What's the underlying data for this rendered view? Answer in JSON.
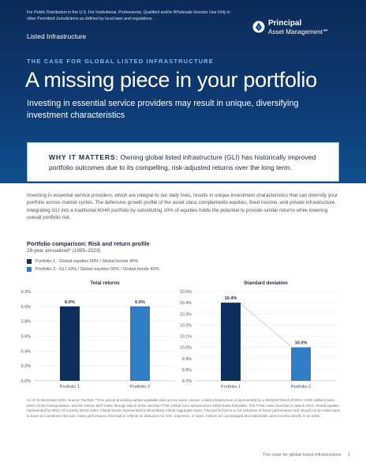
{
  "header": {
    "disclaimer": "For Public Distribution in the U.S. For Institutional, Professional, Qualified and/or Wholesale Investor Use Only in other Permitted Jurisdictions as defined by local laws and regulations.",
    "section_label": "Listed Infrastructure",
    "logo": {
      "name_line1": "Principal",
      "name_line2": "Asset Management℠"
    },
    "kicker": "THE CASE FOR GLOBAL LISTED INFRASTRUCTURE",
    "title": "A missing piece in your portfolio",
    "subtitle": "Investing in essential service providers may result in unique, diversifying investment characteristics"
  },
  "callout": {
    "lead": "WHY IT MATTERS:",
    "text": " Owning global listed infrastructure (GLI) has historically improved portfolio outcomes due to its compelling, risk-adjusted returns over the long term."
  },
  "body": "Investing in essential service providers, which are integral to our daily lives, results in unique investment characteristics that can diversify your portfolio across market cycles. The defensive growth profile of the asset class complements equities, fixed income, and private infrastructure. Integrating GLI into a traditional 60/40 portfolio by substituting 10% of equities holds the potential to provide similar returns while lowering overall portfolio risk.",
  "comparison": {
    "title": "Portfolio comparison: Risk and return profile",
    "subtitle": "28-year annualized* (1995–2023)",
    "legend": [
      {
        "label": "Portfolio 1 - Global equities 60% / Global bonds 40%",
        "color": "#0d2f5e"
      },
      {
        "label": "Portfolio 2 - GLI 10% / Global equities 50% / Global bonds 40%",
        "color": "#2f7dc4"
      }
    ]
  },
  "chart_data": [
    {
      "type": "bar",
      "title": "Total returns",
      "categories": [
        "Portfolio 1",
        "Portfolio 2"
      ],
      "values": [
        6.0,
        6.0
      ],
      "labels": [
        "6.0%",
        "6.0%"
      ],
      "ylim": [
        5.0,
        6.2
      ],
      "ticks": [
        5.0,
        5.2,
        5.4,
        5.6,
        5.8,
        6.0,
        6.2
      ],
      "tick_labels": [
        "5.0%",
        "5.2%",
        "5.4%",
        "5.6%",
        "5.8%",
        "6.0%",
        "6.2%"
      ],
      "colors": [
        "#0d2f5e",
        "#2f7dc4"
      ]
    },
    {
      "type": "bar",
      "title": "Standard deviation",
      "categories": [
        "Portfolio 1",
        "Portfolio 2"
      ],
      "values": [
        10.4,
        10.0
      ],
      "labels": [
        "10.4%",
        "10.0%"
      ],
      "ylim": [
        9.7,
        10.5
      ],
      "ticks": [
        9.7,
        9.8,
        9.9,
        10.0,
        10.1,
        10.2,
        10.3,
        10.4,
        10.5
      ],
      "tick_labels": [
        "9.7%",
        "9.8%",
        "9.9%",
        "10.0%",
        "10.1%",
        "10.2%",
        "10.3%",
        "10.4%",
        "10.5%"
      ],
      "colors": [
        "#0d2f5e",
        "#2f7dc4"
      ],
      "connector": true
    }
  ],
  "footnote": "As of 31 December 2023. Source: FactSet. *Time period providing earliest available data across asset classes. Listed infrastructure is represented by a 50/30/20 blend of MSCI ACWI Utilities Index, MSCI ACWI Transportation, and the Alerian MLP Index through March 2015, and the FTSE Global Core Infrastructure 50/50 Index thereafter. The FTSE Index launched in March 2015. Global equities represented by MSCI All Country World Index. Global bonds represented by Bloomberg Global Aggregate Index. Past performance is not indicative of future performance and should not be relied upon to base an investment decision. Index performance information reflects no deduction for fees, expenses, or taxes. Indices are unmanaged and individuals cannot invest directly in an index.",
  "footer": {
    "text": "The case for global listed infrastructure",
    "page": "1"
  }
}
